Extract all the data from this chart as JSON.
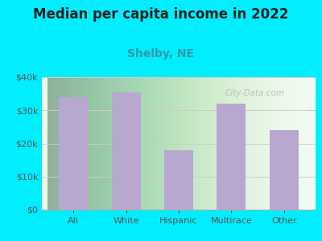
{
  "title": "Median per capita income in 2022",
  "subtitle": "Shelby, NE",
  "categories": [
    "All",
    "White",
    "Hispanic",
    "Multirace",
    "Other"
  ],
  "values": [
    34000,
    35500,
    18000,
    32000,
    24000
  ],
  "bar_color": "#b8a8d0",
  "title_fontsize": 12,
  "subtitle_fontsize": 10,
  "subtitle_color": "#3399aa",
  "bg_outer": "#00eeff",
  "tick_color": "#555555",
  "xlabel_color": "#444444",
  "ylim": [
    0,
    40000
  ],
  "yticks": [
    0,
    10000,
    20000,
    30000,
    40000
  ],
  "watermark": "City-Data.com"
}
